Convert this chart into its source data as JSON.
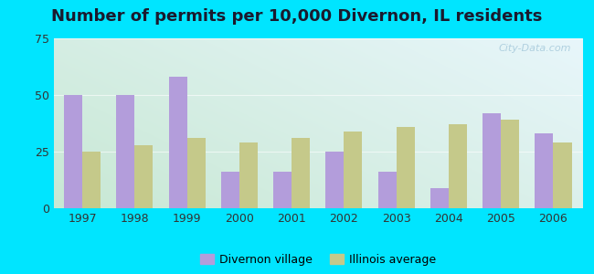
{
  "title": "Number of permits per 10,000 Divernon, IL residents",
  "years": [
    1997,
    1998,
    1999,
    2000,
    2001,
    2002,
    2003,
    2004,
    2005,
    2006
  ],
  "divernon": [
    50,
    50,
    58,
    16,
    16,
    25,
    16,
    9,
    42,
    33
  ],
  "illinois": [
    25,
    28,
    31,
    29,
    31,
    34,
    36,
    37,
    39,
    29
  ],
  "divernon_color": "#b39ddb",
  "illinois_color": "#c5c98a",
  "outer_bg": "#00e5ff",
  "plot_bg_topleft": "#d4ede0",
  "plot_bg_topright": "#d8f0f5",
  "plot_bg_bottomleft": "#c8e8d4",
  "plot_bg_bottomright": "#d0ecf4",
  "bar_width": 0.35,
  "ylim": [
    0,
    75
  ],
  "yticks": [
    0,
    25,
    50,
    75
  ],
  "legend_divernon": "Divernon village",
  "legend_illinois": "Illinois average",
  "watermark": "City-Data.com",
  "title_fontsize": 13,
  "tick_fontsize": 9,
  "legend_fontsize": 9
}
